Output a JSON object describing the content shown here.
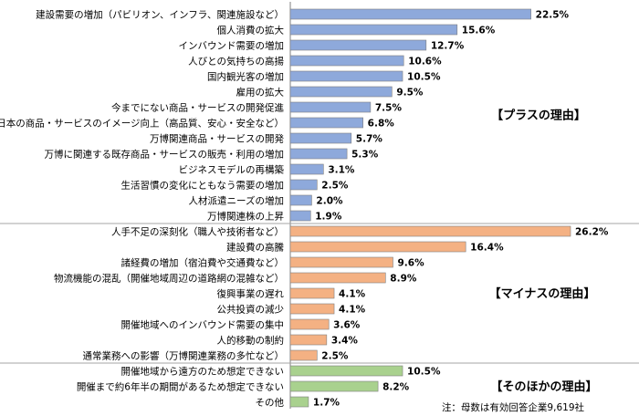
{
  "chart_data": {
    "type": "bar",
    "orientation": "horizontal",
    "xlim": [
      0,
      26.2
    ],
    "colors": {
      "plus": "#8ea9db",
      "minus": "#f4b183",
      "other": "#a9d18e",
      "divider": "#a6a6a6"
    },
    "groups": [
      {
        "name": "【プラスの理由】",
        "color_key": "plus",
        "categories": [
          "建設需要の増加（パビリオン、インフラ、関連施設など）",
          "個人消費の拡大",
          "インバウンド需要の増加",
          "人びとの気持ちの高揚",
          "国内観光客の増加",
          "雇用の拡大",
          "今までにない商品・サービスの開発促進",
          "日本の商品・サービスのイメージ向上（高品質、安心・安全など）",
          "万博関連商品・サービスの開発",
          "万博に関連する既存商品・サービスの販売・利用の増加",
          "ビジネスモデルの再構築",
          "生活習慣の変化にともなう需要の増加",
          "人材派遣ニーズの増加",
          "万博関連株の上昇"
        ],
        "values": [
          22.5,
          15.6,
          12.7,
          10.6,
          10.5,
          9.5,
          7.5,
          6.8,
          5.7,
          5.3,
          3.1,
          2.5,
          2.0,
          1.9
        ],
        "value_labels": [
          "22.5%",
          "15.6%",
          "12.7%",
          "10.6%",
          "10.5%",
          "9.5%",
          "7.5%",
          "6.8%",
          "5.7%",
          "5.3%",
          "3.1%",
          "2.5%",
          "2.0%",
          "1.9%"
        ]
      },
      {
        "name": "【マイナスの理由】",
        "color_key": "minus",
        "categories": [
          "人手不足の深刻化（職人や技術者など）",
          "建設費の高騰",
          "諸経費の増加（宿泊費や交通費など）",
          "物流機能の混乱（開催地域周辺の道路網の混雑など）",
          "復興事業の遅れ",
          "公共投資の減少",
          "開催地域へのインバウンド需要の集中",
          "人的移動の制約",
          "通常業務への影響（万博関連業務の多忙など）"
        ],
        "values": [
          26.2,
          16.4,
          9.6,
          8.9,
          4.1,
          4.1,
          3.6,
          3.4,
          2.5
        ],
        "value_labels": [
          "26.2%",
          "16.4%",
          "9.6%",
          "8.9%",
          "4.1%",
          "4.1%",
          "3.6%",
          "3.4%",
          "2.5%"
        ]
      },
      {
        "name": "【そのほかの理由】",
        "color_key": "other",
        "categories": [
          "開催地域から遠方のため想定できない",
          "開催まで約6年半の期間があるため想定できない",
          "その他"
        ],
        "values": [
          10.5,
          8.2,
          1.7
        ],
        "value_labels": [
          "10.5%",
          "8.2%",
          "1.7%"
        ]
      }
    ],
    "note": "注：母数は有効回答企業9,619社"
  }
}
